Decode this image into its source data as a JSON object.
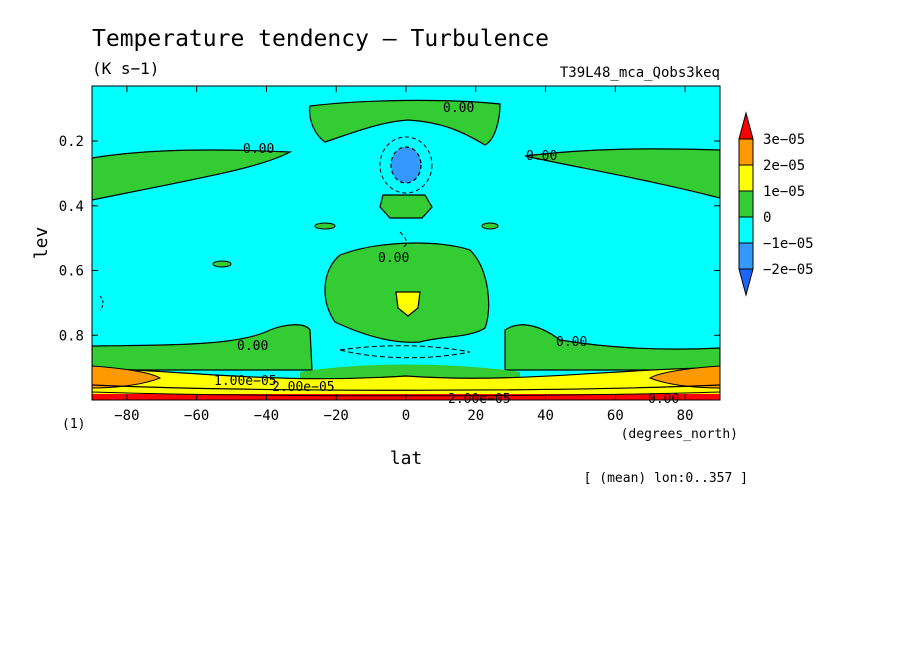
{
  "chart_data": {
    "type": "heatmap",
    "title": "Temperature tendency — Turbulence",
    "units": "(K s−1)",
    "experiment": "T39L48_mca_Qobs3keq",
    "panel_id": "(1)",
    "xlabel": "lat",
    "x_units": "(degrees_north)",
    "ylabel": "lev",
    "footnote": "[ (mean) lon:0..357 ]",
    "xlim": [
      -90,
      90
    ],
    "ylim": [
      1.0,
      0.03
    ],
    "x_ticks": [
      -80,
      -60,
      -40,
      -20,
      0,
      20,
      40,
      60,
      80
    ],
    "x_tick_labels": [
      "−80",
      "−60",
      "−40",
      "−20",
      "0",
      "20",
      "40",
      "60",
      "80"
    ],
    "y_ticks": [
      0.2,
      0.4,
      0.6,
      0.8
    ],
    "y_tick_labels": [
      "0.2",
      "0.4",
      "0.6",
      "0.8"
    ],
    "colorbar": {
      "levels": [
        "3e−05",
        "2e−05",
        "1e−05",
        "0",
        "−1e−05",
        "−2e−05"
      ],
      "colors": [
        "#ff0000",
        "#ff9900",
        "#ffff00",
        "#33cc33",
        "#00ffff",
        "#3399ff",
        "#1a66ff"
      ]
    },
    "contour_labels": [
      "0.00",
      "0.00",
      "0.00",
      "0.00",
      "0.00",
      "0.00",
      "0.00",
      "1.00e−05",
      "2.00e−05",
      "2.00e−05"
    ],
    "fields": {
      "background": "−1e−05 to 0",
      "upper_bands": "0 to 1e−05",
      "min_center": "−2e−05 near lat 0, lev 0.25",
      "max_center": "1e−05 to 2e−05 near lat 0, lev 0.68",
      "surface": "up to 3e−05 near lev 1.0"
    }
  }
}
